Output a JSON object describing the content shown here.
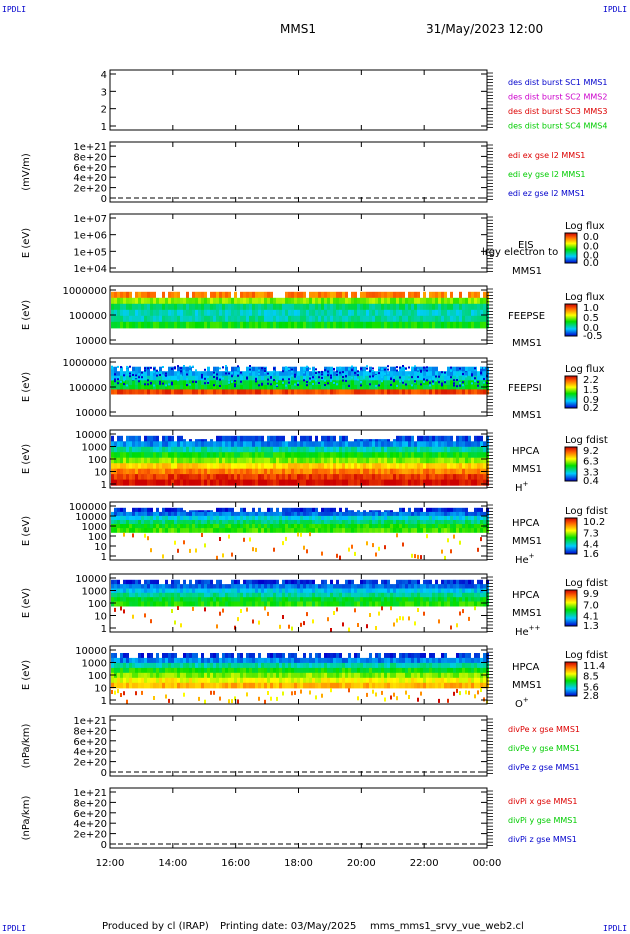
{
  "corners": {
    "tl": "IPDLI",
    "tr": "IPDLI",
    "bl": "IPDLI",
    "br": "IPDLI"
  },
  "header": {
    "spacecraft": "MMS1",
    "datetime": "31/May/2023 12:00"
  },
  "footer": {
    "produced": "Produced by cl (IRAP)",
    "printing": "Printing date: 03/May/2025",
    "script": "mms_mms1_srvy_vue_web2.cl"
  },
  "colors": {
    "blue": "#0000cc",
    "magenta": "#cc00cc",
    "red": "#dd0000",
    "green": "#00cc00"
  },
  "chart_data": {
    "type": "heatmap",
    "title": "MMS1 31/May/2023 12:00",
    "x_tick_labels": [
      "12:00",
      "14:00",
      "16:00",
      "18:00",
      "20:00",
      "22:00",
      "00:00"
    ],
    "x_hours": [
      12,
      14,
      16,
      18,
      20,
      22,
      24
    ],
    "xlim": [
      "12:00",
      "00:00"
    ],
    "panels": [
      {
        "id": "des",
        "kind": "line",
        "ylabel": "",
        "y_ticks": [
          "4",
          "3",
          "2",
          "1"
        ],
        "legend": [
          {
            "text": "des dist burst SC1 MMS1",
            "color": "#0000cc"
          },
          {
            "text": "des dist burst SC2 MMS2",
            "color": "#cc00cc"
          },
          {
            "text": "des dist burst SC3 MMS3",
            "color": "#dd0000"
          },
          {
            "text": "des dist burst SC4 MMS4",
            "color": "#00cc00"
          }
        ]
      },
      {
        "id": "edi",
        "kind": "line",
        "ylabel": "(mV/m)",
        "y_ticks": [
          "1e+21",
          "8e+20",
          "6e+20",
          "4e+20",
          "2e+20",
          "0"
        ],
        "zero_line": true,
        "legend": [
          {
            "text": "edi ex gse l2 MMS1",
            "color": "#dd0000"
          },
          {
            "text": "edi ey gse l2 MMS1",
            "color": "#00cc00"
          },
          {
            "text": "edi ez gse l2 MMS1",
            "color": "#0000cc"
          }
        ]
      },
      {
        "id": "eis",
        "kind": "empty",
        "ylabel": "E (eV)",
        "y_ticks": [
          "1e+07",
          "1e+06",
          "1e+05",
          "1e+04"
        ],
        "labels": [
          "EIS",
          "MMS1"
        ],
        "overlay_label": "lrgy electron to",
        "cbar_title": "Log flux",
        "cbar_ticks": [
          "0.0",
          "0.0",
          "0.0",
          "0.0"
        ]
      },
      {
        "id": "feepse",
        "kind": "spec",
        "style": "feeps_e",
        "ylabel": "E (eV)",
        "y_ticks": [
          "1000000",
          "100000",
          "10000"
        ],
        "labels": [
          "FEEPSE",
          "MMS1"
        ],
        "cbar_title": "Log flux",
        "cbar_ticks": [
          "1.0",
          "0.5",
          "0.0",
          "-0.5"
        ]
      },
      {
        "id": "feepsi",
        "kind": "spec",
        "style": "feeps_i",
        "ylabel": "E (eV)",
        "y_ticks": [
          "1000000",
          "100000",
          "10000"
        ],
        "labels": [
          "FEEPSI",
          "MMS1"
        ],
        "cbar_title": "Log flux",
        "cbar_ticks": [
          "2.2",
          "1.5",
          "0.9",
          "0.2"
        ]
      },
      {
        "id": "hpca_h",
        "kind": "spec",
        "style": "hpca_h",
        "ylabel": "E (eV)",
        "y_ticks": [
          "10000",
          "1000",
          "100",
          "10",
          "1"
        ],
        "labels": [
          "HPCA",
          "MMS1"
        ],
        "species": "H",
        "species_sup": "+",
        "cbar_title": "Log fdist",
        "cbar_ticks": [
          "9.2",
          "6.3",
          "3.3",
          "0.4"
        ]
      },
      {
        "id": "hpca_he",
        "kind": "spec",
        "style": "hpca_he",
        "ylabel": "E (eV)",
        "y_ticks": [
          "100000",
          "10000",
          "1000",
          "100",
          "10",
          "1"
        ],
        "labels": [
          "HPCA",
          "MMS1"
        ],
        "species": "He",
        "species_sup": "+",
        "cbar_title": "Log fdist",
        "cbar_ticks": [
          "10.2",
          "7.3",
          "4.4",
          "1.6"
        ]
      },
      {
        "id": "hpca_hepp",
        "kind": "spec",
        "style": "hpca_hepp",
        "ylabel": "E (eV)",
        "y_ticks": [
          "10000",
          "1000",
          "100",
          "10",
          "1"
        ],
        "labels": [
          "HPCA",
          "MMS1"
        ],
        "species": "He",
        "species_sup": "++",
        "cbar_title": "Log fdist",
        "cbar_ticks": [
          "9.9",
          "7.0",
          "4.1",
          "1.3"
        ]
      },
      {
        "id": "hpca_o",
        "kind": "spec",
        "style": "hpca_o",
        "ylabel": "E (eV)",
        "y_ticks": [
          "10000",
          "1000",
          "100",
          "10",
          "1"
        ],
        "labels": [
          "HPCA",
          "MMS1"
        ],
        "species": "O",
        "species_sup": "+",
        "cbar_title": "Log fdist",
        "cbar_ticks": [
          "11.4",
          "8.5",
          "5.6",
          "2.8"
        ]
      },
      {
        "id": "divpe",
        "kind": "line",
        "ylabel": "(nPa/km)",
        "y_ticks": [
          "1e+21",
          "8e+20",
          "6e+20",
          "4e+20",
          "2e+20",
          "0"
        ],
        "zero_line": true,
        "legend": [
          {
            "text": "divPe x gse MMS1",
            "color": "#dd0000"
          },
          {
            "text": "divPe y gse MMS1",
            "color": "#00cc00"
          },
          {
            "text": "divPe z gse MMS1",
            "color": "#0000cc"
          }
        ]
      },
      {
        "id": "divpi",
        "kind": "line",
        "ylabel": "(nPa/km)",
        "y_ticks": [
          "1e+21",
          "8e+20",
          "6e+20",
          "4e+20",
          "2e+20",
          "0"
        ],
        "zero_line": true,
        "legend": [
          {
            "text": "divPi x gse MMS1",
            "color": "#dd0000"
          },
          {
            "text": "divPi y gse MMS1",
            "color": "#00cc00"
          },
          {
            "text": "divPi z gse MMS1",
            "color": "#0000cc"
          }
        ]
      }
    ]
  }
}
